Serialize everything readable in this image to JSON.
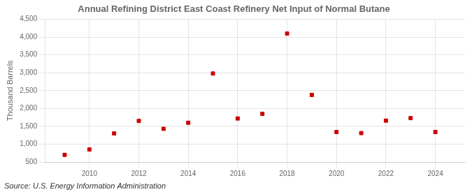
{
  "chart_data": {
    "type": "scatter",
    "title": "Annual Refining District East Coast Refinery Net Input of Normal Butane",
    "ylabel": "Thousand Barrels",
    "annotations": [
      "Source: U.S. Energy Information Administration"
    ],
    "x": [
      2009,
      2010,
      2011,
      2012,
      2013,
      2014,
      2015,
      2016,
      2017,
      2018,
      2019,
      2020,
      2021,
      2022,
      2023,
      2024
    ],
    "values": [
      700,
      850,
      1300,
      1650,
      1430,
      1600,
      2980,
      1720,
      1850,
      4100,
      2380,
      1340,
      1310,
      1660,
      1730,
      1340
    ],
    "color": "#cc0000",
    "marker": "square",
    "xlim": [
      2008.2,
      2025.2
    ],
    "xticks": [
      2010,
      2012,
      2014,
      2016,
      2018,
      2020,
      2022,
      2024
    ],
    "ylim": [
      500,
      4500
    ],
    "yticks": [
      500,
      {
        "value": 1000,
        "label": "1,000"
      },
      {
        "value": 1500,
        "label": "1,500"
      },
      {
        "value": 2000,
        "label": "2,000"
      },
      {
        "value": 2500,
        "label": "2,500"
      },
      {
        "value": 3000,
        "label": "3,000"
      },
      {
        "value": 3500,
        "label": "3,500"
      },
      {
        "value": 4000,
        "label": "4,000"
      },
      {
        "value": 4500,
        "label": "4,500"
      }
    ],
    "grid": true
  }
}
